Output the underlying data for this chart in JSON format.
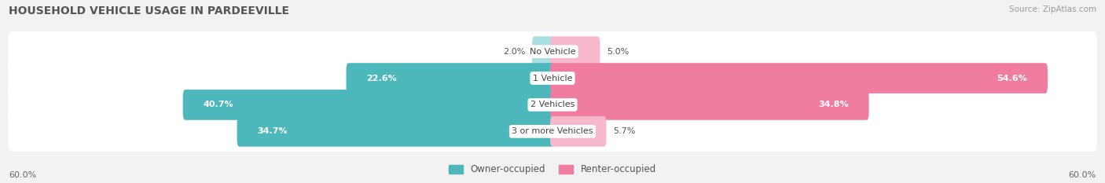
{
  "title": "HOUSEHOLD VEHICLE USAGE IN PARDEEVILLE",
  "source": "Source: ZipAtlas.com",
  "categories": [
    "No Vehicle",
    "1 Vehicle",
    "2 Vehicles",
    "3 or more Vehicles"
  ],
  "owner_values": [
    2.0,
    22.6,
    40.7,
    34.7
  ],
  "renter_values": [
    5.0,
    54.6,
    34.8,
    5.7
  ],
  "owner_color": "#4db8bc",
  "renter_color": "#f07ca0",
  "owner_color_light": "#a8dfe0",
  "renter_color_light": "#f7b8cc",
  "owner_label": "Owner-occupied",
  "renter_label": "Renter-occupied",
  "axis_max": 60.0,
  "axis_label_left": "60.0%",
  "axis_label_right": "60.0%",
  "bg_color": "#f2f2f2",
  "row_bg_color": "#e8e8e8",
  "title_color": "#555555",
  "source_color": "#999999",
  "title_fontsize": 10,
  "bar_label_fontsize": 8,
  "cat_label_fontsize": 8
}
